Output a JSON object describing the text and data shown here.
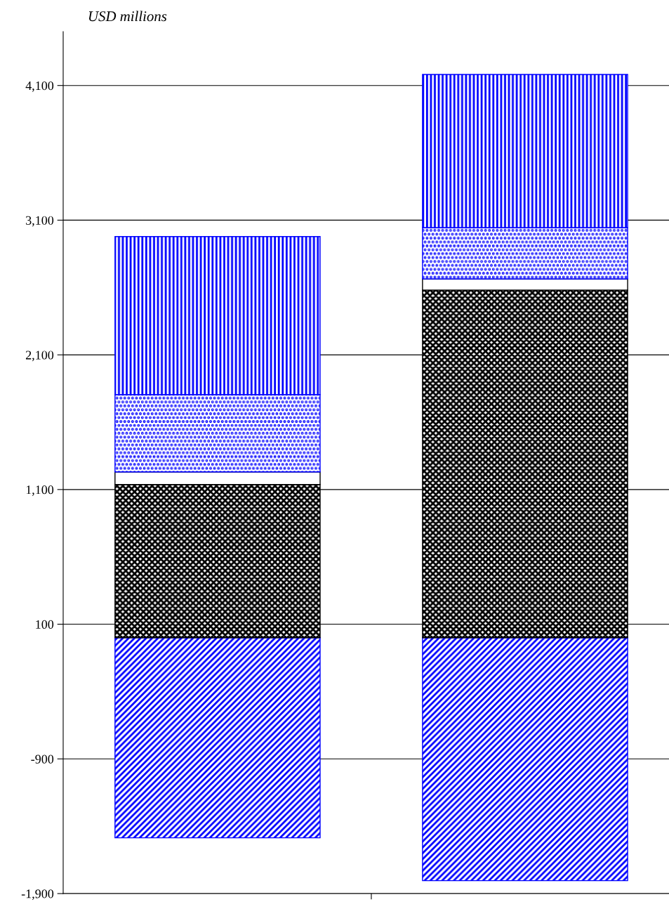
{
  "chart_data": {
    "type": "bar",
    "title": "USD millions",
    "stacked": true,
    "categories": [
      null,
      null
    ],
    "series": [
      {
        "color": "#0000ff",
        "values": [
          -1486,
          -1804
        ]
      },
      {
        "color": "#000000",
        "values": [
          1137,
          2581
        ]
      },
      {
        "color": "#ffffff",
        "values": [
          94,
          83
        ]
      },
      {
        "color": "#0000ff",
        "values": [
          574,
          381
        ]
      },
      {
        "color": "#0000ff",
        "values": [
          1173,
          1137
        ]
      }
    ],
    "ylim": [
      -1900,
      4500
    ],
    "yticks": [
      {
        "value": -1900,
        "label": "-1,900"
      },
      {
        "value": -900,
        "label": "-900"
      },
      {
        "value": 100,
        "label": "100"
      },
      {
        "value": 1100,
        "label": "1,100"
      },
      {
        "value": 2100,
        "label": "2,100"
      },
      {
        "value": 3100,
        "label": "3,100"
      },
      {
        "value": 4100,
        "label": "4,100"
      }
    ],
    "grid": "y",
    "legend": false
  }
}
